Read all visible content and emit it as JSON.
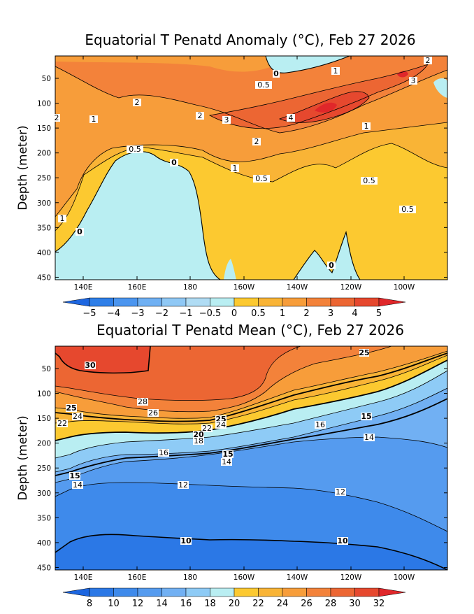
{
  "colors": {
    "anomaly": {
      "lt_m5": "#1d66e0",
      "m5_m4": "#2f7fe8",
      "m4_m3": "#4b95ef",
      "m3_m2": "#6fb0f3",
      "m2_m1": "#8fc8f5",
      "m1_m05": "#b0dcf4",
      "m05_0": "#b9eef2",
      "0_05": "#fcc930",
      "05_1": "#f9b436",
      "1_2": "#f79d3a",
      "2_3": "#f3823a",
      "3_4": "#ec6633",
      "4_5": "#e6482e",
      "gt_5": "#e0272a"
    },
    "mean": {
      "lt_8": "#1d66e0",
      "8_10": "#2b78e6",
      "10_12": "#3e8aeb",
      "12_14": "#559bef",
      "14_16": "#71b0f3",
      "16_18": "#8ecbf6",
      "18_20": "#b9eef2",
      "20_22": "#fcc930",
      "22_24": "#f9b436",
      "24_26": "#f79d3a",
      "26_28": "#f3823a",
      "28_30": "#ec6633",
      "30_32": "#e6482e",
      "gt_32": "#e0272a"
    }
  },
  "chart_data": [
    {
      "type": "contour",
      "title": "Equatorial T Penatd Anomaly (°C), Feb 27 2026",
      "ylabel": "Depth (meter)",
      "xlabel": "",
      "xlim": [
        130,
        265
      ],
      "ylim": [
        455,
        5
      ],
      "y_reversed": true,
      "x_ticks": [
        "140E",
        "160E",
        "180",
        "160W",
        "140W",
        "120W",
        "100W"
      ],
      "y_ticks": [
        "50",
        "100",
        "150",
        "200",
        "250",
        "300",
        "350",
        "400",
        "450"
      ],
      "colorbar_levels": [
        "−5",
        "−4",
        "−3",
        "−2",
        "−1",
        "−0.5",
        "0",
        "0.5",
        "1",
        "2",
        "3",
        "4",
        "5"
      ],
      "contour_labels": [
        "0",
        "0.5",
        "1",
        "2",
        "3",
        "4",
        "5"
      ]
    },
    {
      "type": "contour",
      "title": "Equatorial T Penatd Mean (°C), Feb 27 2026",
      "ylabel": "Depth (meter)",
      "xlabel": "",
      "xlim": [
        130,
        265
      ],
      "ylim": [
        455,
        5
      ],
      "y_reversed": true,
      "x_ticks": [
        "140E",
        "160E",
        "180",
        "160W",
        "140W",
        "120W",
        "100W"
      ],
      "y_ticks": [
        "50",
        "100",
        "150",
        "200",
        "250",
        "300",
        "350",
        "400",
        "450"
      ],
      "colorbar_levels": [
        "8",
        "10",
        "12",
        "14",
        "16",
        "18",
        "20",
        "22",
        "24",
        "26",
        "28",
        "30",
        "32"
      ],
      "contour_labels": [
        "10",
        "12",
        "14",
        "15",
        "16",
        "18",
        "20",
        "22",
        "24",
        "25",
        "26",
        "28",
        "30"
      ]
    }
  ]
}
